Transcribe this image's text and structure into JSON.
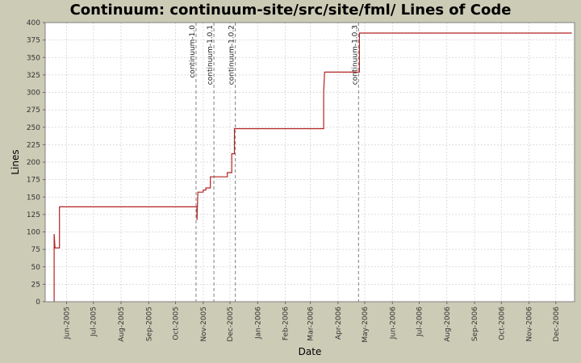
{
  "chart_data": {
    "type": "line",
    "title": "Continuum: continuum-site/src/site/fml/ Lines of Code",
    "xlabel": "Date",
    "ylabel": "Lines",
    "ylim": [
      0,
      400
    ],
    "yticks": [
      0,
      25,
      50,
      75,
      100,
      125,
      150,
      175,
      200,
      225,
      250,
      275,
      300,
      325,
      350,
      375,
      400
    ],
    "xlim": [
      "2005-05-08",
      "2006-12-22"
    ],
    "xticks": [
      {
        "label": "Jun-2005",
        "date": "2005-06-01"
      },
      {
        "label": "Jul-2005",
        "date": "2005-07-01"
      },
      {
        "label": "Aug-2005",
        "date": "2005-08-01"
      },
      {
        "label": "Sep-2005",
        "date": "2005-09-01"
      },
      {
        "label": "Oct-2005",
        "date": "2005-10-01"
      },
      {
        "label": "Nov-2005",
        "date": "2005-11-01"
      },
      {
        "label": "Dec-2005",
        "date": "2005-12-01"
      },
      {
        "label": "Jan-2006",
        "date": "2006-01-01"
      },
      {
        "label": "Feb-2006",
        "date": "2006-02-01"
      },
      {
        "label": "Mar-2006",
        "date": "2006-03-01"
      },
      {
        "label": "Apr-2006",
        "date": "2006-04-01"
      },
      {
        "label": "May-2006",
        "date": "2006-05-01"
      },
      {
        "label": "Jun-2006",
        "date": "2006-06-01"
      },
      {
        "label": "Jul-2006",
        "date": "2006-07-01"
      },
      {
        "label": "Aug-2006",
        "date": "2006-08-01"
      },
      {
        "label": "Sep-2006",
        "date": "2006-09-01"
      },
      {
        "label": "Oct-2006",
        "date": "2006-10-01"
      },
      {
        "label": "Nov-2006",
        "date": "2006-11-01"
      },
      {
        "label": "Dec-2006",
        "date": "2006-12-01"
      }
    ],
    "grid": true,
    "series": [
      {
        "color": "#b22222",
        "step": true,
        "points": [
          {
            "x": "2005-05-18",
            "y": 0
          },
          {
            "x": "2005-05-18",
            "y": 97
          },
          {
            "x": "2005-05-19",
            "y": 77
          },
          {
            "x": "2005-05-24",
            "y": 77
          },
          {
            "x": "2005-05-24",
            "y": 136
          },
          {
            "x": "2005-10-25",
            "y": 136
          },
          {
            "x": "2005-10-25",
            "y": 117
          },
          {
            "x": "2005-10-26",
            "y": 157
          },
          {
            "x": "2005-11-01",
            "y": 157
          },
          {
            "x": "2005-11-01",
            "y": 160
          },
          {
            "x": "2005-11-04",
            "y": 160
          },
          {
            "x": "2005-11-04",
            "y": 163
          },
          {
            "x": "2005-11-09",
            "y": 163
          },
          {
            "x": "2005-11-09",
            "y": 179
          },
          {
            "x": "2005-11-28",
            "y": 179
          },
          {
            "x": "2005-11-28",
            "y": 185
          },
          {
            "x": "2005-12-03",
            "y": 185
          },
          {
            "x": "2005-12-03",
            "y": 212
          },
          {
            "x": "2005-12-06",
            "y": 212
          },
          {
            "x": "2005-12-06",
            "y": 248
          },
          {
            "x": "2006-03-16",
            "y": 248
          },
          {
            "x": "2006-03-16",
            "y": 301
          },
          {
            "x": "2006-03-17",
            "y": 329
          },
          {
            "x": "2006-04-25",
            "y": 329
          },
          {
            "x": "2006-04-25",
            "y": 385
          },
          {
            "x": "2006-12-19",
            "y": 385
          }
        ]
      }
    ],
    "markers": [
      {
        "label": "continuum-1.0",
        "date": "2005-10-24"
      },
      {
        "label": "continuum-1.0.1",
        "date": "2005-11-13"
      },
      {
        "label": "continuum-1.0.2",
        "date": "2005-12-07"
      },
      {
        "label": "continuum-1.0.3",
        "date": "2006-04-24"
      }
    ],
    "colors": {
      "background": "#cccbb6",
      "plot_background": "#ffffff",
      "grid": "#d3d3d3",
      "line": "#b22222",
      "marker_line": "#808080"
    }
  }
}
